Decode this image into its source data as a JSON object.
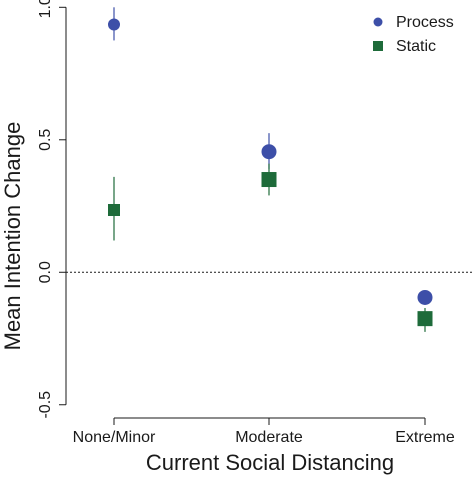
{
  "chart_data": {
    "type": "scatter",
    "categories": [
      "None/Minor",
      "Moderate",
      "Extreme"
    ],
    "series": [
      {
        "name": "Process",
        "color": "#3d4fa8",
        "marker": "circle",
        "values": [
          0.935,
          0.455,
          -0.095
        ],
        "err_low": [
          0.875,
          0.39,
          -0.12
        ],
        "err_high": [
          1.0,
          0.525,
          -0.075
        ]
      },
      {
        "name": "Static",
        "color": "#1e6b3a",
        "marker": "square",
        "values": [
          0.235,
          0.35,
          -0.175
        ],
        "err_low": [
          0.12,
          0.29,
          -0.225
        ],
        "err_high": [
          0.36,
          0.41,
          -0.135
        ]
      }
    ],
    "ylim": [
      -0.55,
      1.02
    ],
    "yticks": [
      -0.5,
      0.0,
      0.5,
      1.0
    ],
    "ytick_labels": [
      "-0.5",
      "0.0",
      "0.5",
      "1.0"
    ],
    "reference_line": 0.0,
    "xlabel": "Current Social Distancing",
    "ylabel": "Mean Intention Change",
    "legend_position": "top-right"
  }
}
